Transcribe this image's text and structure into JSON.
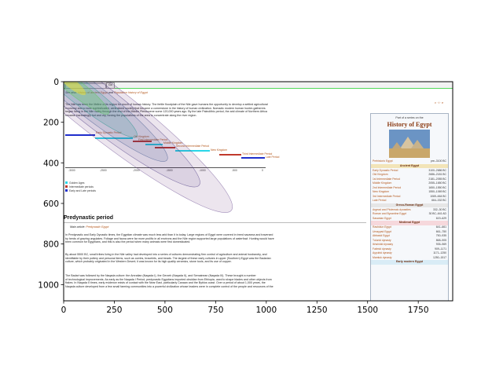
{
  "chart_data": {
    "type": "heatmap",
    "title": "",
    "xlabel": "",
    "ylabel": "",
    "xlim": [
      0,
      1920
    ],
    "ylim": [
      1080,
      0
    ],
    "xticks": [
      0,
      250,
      500,
      750,
      1000,
      1250,
      1500,
      1750
    ],
    "yticks": [
      0,
      200,
      400,
      600,
      800,
      1000
    ],
    "overlay": "gaze density contour plot drawn over the screenshot, running diagonally from the top-left corner toward the center",
    "colormap": [
      "#fde725",
      "#5ec962",
      "#21918c",
      "#3b528b",
      "#440154"
    ]
  },
  "page": {
    "nav_button": "Go",
    "subtitle_line": {
      "prefix": "See also: ",
      "link1": "History of ancient Egypt",
      "mid": " and ",
      "link2": "Population history of Egypt"
    },
    "intro_lines": [
      "The Nile has been the lifeline of its region for much of human history. The fertile floodplain of the Nile gave humans the opportunity to develop a settled agricultural",
      "economy and a more sophisticated, centralized society that became a cornerstone in the history of human civilization. Nomadic modern human hunter-gatherers",
      "began living in the Nile valley through the end of the Middle Pleistocene some 120,000 years ago. By the late Paleolithic period, the arid climate of Northern Africa",
      "became increasingly hot and dry, forcing the populations of the area to concentrate along the river region."
    ],
    "timeline": {
      "axis_labels": [
        "-3000",
        "-2500",
        "-2000",
        "-1500",
        "-1000",
        "-500",
        "0"
      ],
      "periods": [
        "Early Dynastic Period",
        "Old Kingdom",
        "First Intermediate Period",
        "Middle Kingdom",
        "Second Intermediate Period",
        "New Kingdom",
        "Third Intermediate Period",
        "Late Period"
      ],
      "legend": [
        "Golden Ages",
        "Intermediate periods",
        "Early and Late periods"
      ],
      "colors": {
        "golden": "#29d6e8",
        "intermediate": "#c0392b",
        "early_late": "#1f2ecc"
      }
    },
    "section_heading": "Predynastic period",
    "main_article": {
      "prefix": "Main article: ",
      "link": "Predynastic Egypt"
    },
    "para1": [
      "In Predynastic and Early Dynastic times, the Egyptian climate was much less arid than it is today. Large regions of Egypt were covered in treed savanna and traversed",
      "by herds of grazing ungulates. Foliage and fauna were far more prolific in all environs and the Nile region supported large populations of waterfowl. Hunting would have",
      "been common for Egyptians, and this is also the period when many animals were first domesticated."
    ],
    "para2": [
      "By about 5500 BC, small tribes living in the Nile valley had developed into a series of cultures demonstrating firm control of agriculture and animal husbandry, and",
      "identifiable by their pottery and personal items, such as combs, bracelets, and beads. The largest of these early cultures in upper (Southern) Egypt was the Badarian",
      "culture, which probably originated in the Western Desert; it was known for its high quality ceramics, stone tools, and its use of copper."
    ],
    "para3": [
      "The Badari was followed by the Naqada culture: the Amratian (Naqada I), the Gerzeh (Naqada II), and Semainean (Naqada III). These brought a number",
      "of technological improvements. As early as the Naqada I Period, predynastic Egyptians imported obsidian from Ethiopia, used to shape blades and other objects from",
      "flakes. In Naqada II times, early evidence exists of contact with the Near East, particularly Canaan and the Byblos coast. Over a period of about 1,000 years, the",
      "Naqada culture developed from a few small farming communities into a powerful civilization whose leaders were in complete control of the people and resources of the"
    ],
    "sidebar": {
      "vte": "v · t · e",
      "part_of": "Part of a series on the",
      "title": "History of Egypt",
      "rows1": [
        {
          "name": "Prehistoric Egypt",
          "date": "pre–3100 BC"
        }
      ],
      "sec_ancient": "Ancient Egypt",
      "rows2": [
        {
          "name": "Early Dynastic Period",
          "date": "3100–2686 BC"
        },
        {
          "name": "Old Kingdom",
          "date": "2686–2181 BC"
        },
        {
          "name": "1st Intermediate Period",
          "date": "2181–2055 BC"
        },
        {
          "name": "Middle Kingdom",
          "date": "2055–1650 BC"
        },
        {
          "name": "2nd Intermediate Period",
          "date": "1650–1550 BC"
        },
        {
          "name": "New Kingdom",
          "date": "1550–1069 BC"
        },
        {
          "name": "3rd Intermediate Period",
          "date": "1069–664 BC"
        },
        {
          "name": "Late Period",
          "date": "664–332 BC"
        }
      ],
      "sec_greco": "Greco-Roman Egypt",
      "rows3": [
        {
          "name": "Argead and Ptolemaic dynasties",
          "date": "332–30 BC"
        },
        {
          "name": "Roman and Byzantine Egypt",
          "date": "30 BC–641 AD"
        },
        {
          "name": "Sasanian Egypt",
          "date": "619–629"
        }
      ],
      "sec_medieval": "Medieval Egypt",
      "rows4": [
        {
          "name": "Rashidun Egypt",
          "date": "641–661"
        },
        {
          "name": "Umayyad Egypt",
          "date": "661–750"
        },
        {
          "name": "Abbasid Egypt",
          "date": "750–935"
        },
        {
          "name": "Tulunid dynasty",
          "date": "868–905"
        },
        {
          "name": "Ikhshidid dynasty",
          "date": "935–969"
        },
        {
          "name": "Fatimid dynasty",
          "date": "909–1171"
        },
        {
          "name": "Ayyubid dynasty",
          "date": "1171–1250"
        },
        {
          "name": "Mamluk dynasty",
          "date": "1250–1517"
        }
      ],
      "sec_early_modern": "Early modern Egypt"
    }
  }
}
